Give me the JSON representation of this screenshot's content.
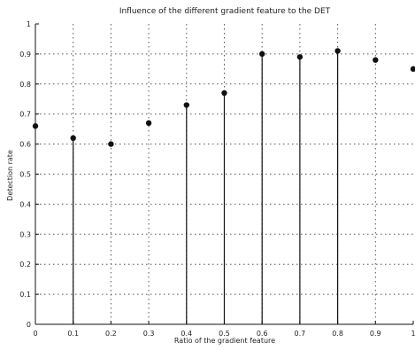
{
  "chart_data": {
    "type": "scatter",
    "title": "Influence of the different gradient feature to the DET",
    "xlabel": "Ratio of the gradient feature",
    "ylabel": "Detection rate",
    "xlim": [
      0,
      1
    ],
    "ylim": [
      0,
      1
    ],
    "x_ticks": [
      0,
      0.1,
      0.2,
      0.3,
      0.4,
      0.5,
      0.6,
      0.7,
      0.8,
      0.9,
      1
    ],
    "y_ticks": [
      0,
      0.1,
      0.2,
      0.3,
      0.4,
      0.5,
      0.6,
      0.7,
      0.8,
      0.9,
      1
    ],
    "x_tick_labels": [
      "0",
      "0.1",
      "0.2",
      "0.3",
      "0.4",
      "0.5",
      "0.6",
      "0.7",
      "0.8",
      "0.9",
      "1"
    ],
    "y_tick_labels": [
      "0",
      "0.1",
      "0.2",
      "0.3",
      "0.4",
      "0.5",
      "0.6",
      "0.7",
      "0.8",
      "0.9",
      "1"
    ],
    "grid": "dotted",
    "points": [
      {
        "x": 0.0,
        "y": 0.66
      },
      {
        "x": 0.1,
        "y": 0.62
      },
      {
        "x": 0.2,
        "y": 0.6
      },
      {
        "x": 0.3,
        "y": 0.67
      },
      {
        "x": 0.4,
        "y": 0.73
      },
      {
        "x": 0.5,
        "y": 0.77
      },
      {
        "x": 0.6,
        "y": 0.9
      },
      {
        "x": 0.7,
        "y": 0.89
      },
      {
        "x": 0.8,
        "y": 0.91
      },
      {
        "x": 0.9,
        "y": 0.88
      },
      {
        "x": 1.0,
        "y": 0.85
      }
    ],
    "stems_x": [
      0.1,
      0.4,
      0.5,
      0.6,
      0.7,
      0.8
    ],
    "colors": {
      "marker": "#111111",
      "stem": "#111111",
      "grid": "#555555",
      "axis": "#111111"
    }
  }
}
